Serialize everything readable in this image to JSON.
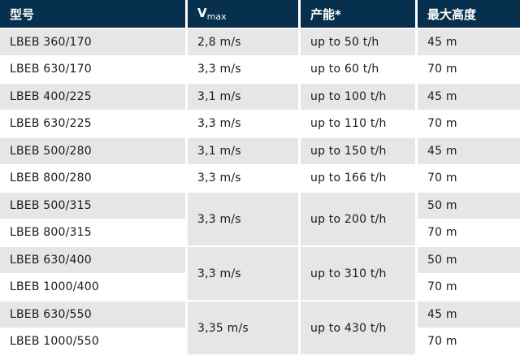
{
  "header": {
    "model": "型号",
    "vmax_main": "V",
    "vmax_sub": "max",
    "capacity": "产能*",
    "max_height": "最大高度"
  },
  "rows": [
    {
      "model": "LBEB 360/170",
      "vmax": "2,8 m/s",
      "capacity": "up to 50 t/h",
      "height": "45 m"
    },
    {
      "model": "LBEB 630/170",
      "vmax": "3,3 m/s",
      "capacity": "up to 60 t/h",
      "height": "70 m"
    },
    {
      "model": "LBEB 400/225",
      "vmax": "3,1 m/s",
      "capacity": "up to 100 t/h",
      "height": "45 m"
    },
    {
      "model": "LBEB 630/225",
      "vmax": "3,3 m/s",
      "capacity": "up to 110 t/h",
      "height": "70 m"
    },
    {
      "model": "LBEB 500/280",
      "vmax": "3,1 m/s",
      "capacity": "up to 150 t/h",
      "height": "45 m"
    },
    {
      "model": "LBEB 800/280",
      "vmax": "3,3 m/s",
      "capacity": "up to 166 t/h",
      "height": "70 m"
    },
    {
      "model": "LBEB 500/315",
      "vmax": "3,3 m/s",
      "capacity": "up to 200 t/h",
      "height": "50 m"
    },
    {
      "model": "LBEB 800/315",
      "height": "70 m"
    },
    {
      "model": "LBEB 630/400",
      "vmax": "3,3 m/s",
      "capacity": "up to 310 t/h",
      "height": "50 m"
    },
    {
      "model": "LBEB 1000/400",
      "height": "70 m"
    },
    {
      "model": "LBEB 630/550",
      "vmax": "3,35 m/s",
      "capacity": "up to 430 t/h",
      "height": "45 m"
    },
    {
      "model": "LBEB 1000/550",
      "height": "70 m"
    }
  ]
}
